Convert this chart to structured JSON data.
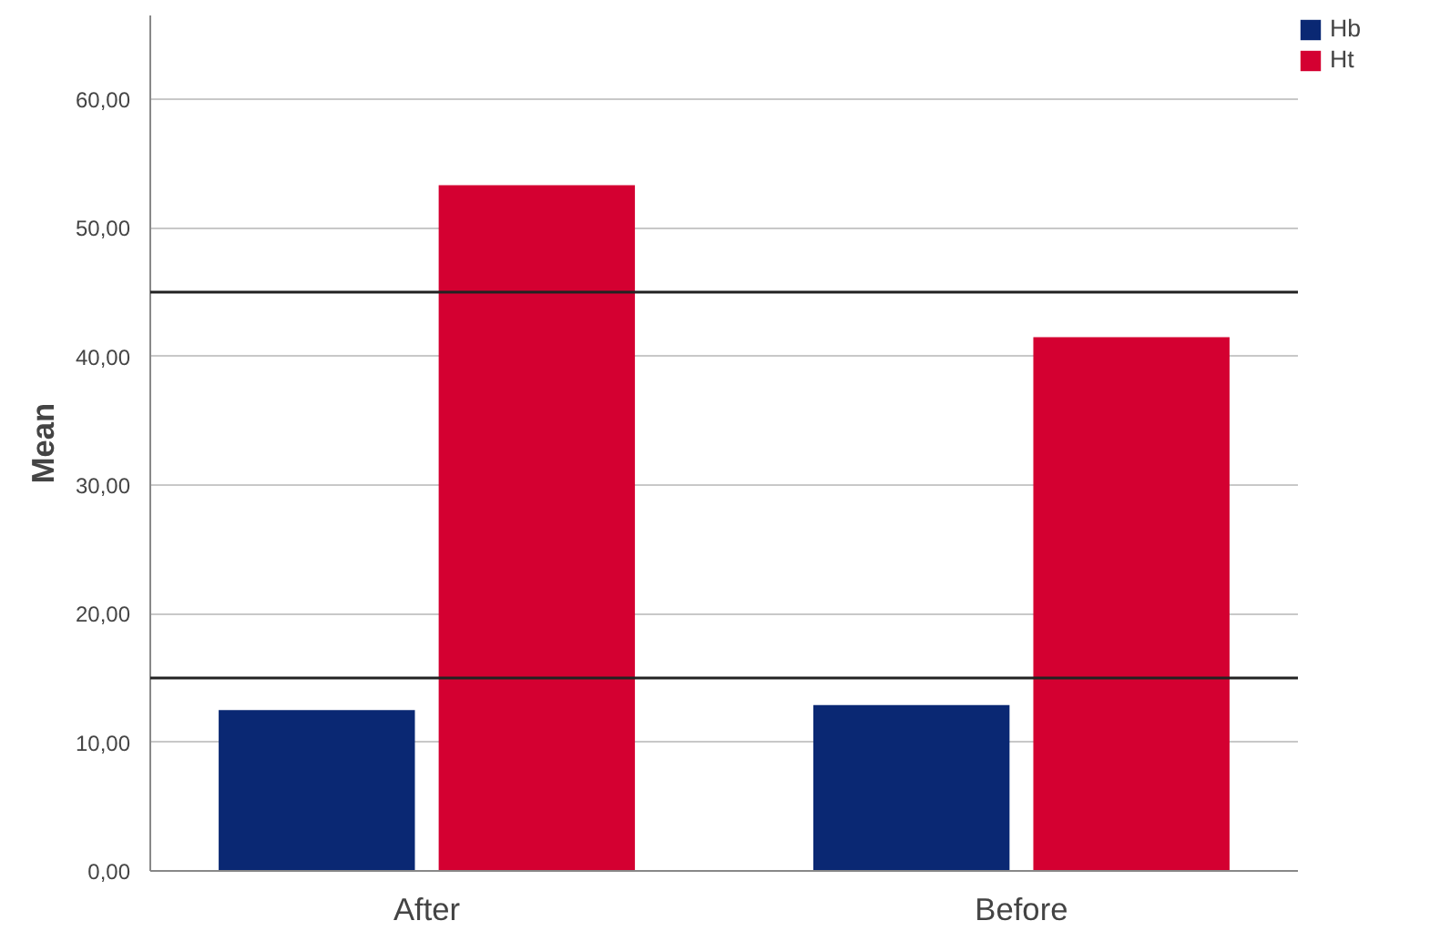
{
  "chart_data": {
    "type": "bar",
    "ylabel": "Mean",
    "categories": [
      "After",
      "Before"
    ],
    "series": [
      {
        "name": "Hb",
        "color": "#0a2873",
        "values": [
          12.5,
          12.9
        ]
      },
      {
        "name": "Ht",
        "color": "#d40031",
        "values": [
          53.3,
          41.5
        ]
      }
    ],
    "ylim": [
      0,
      66.5
    ],
    "yticks": [
      {
        "value": 0,
        "label": "0,00"
      },
      {
        "value": 10,
        "label": "10,00"
      },
      {
        "value": 20,
        "label": "20,00"
      },
      {
        "value": 30,
        "label": "30,00"
      },
      {
        "value": 40,
        "label": "40,00"
      },
      {
        "value": 50,
        "label": "50,00"
      },
      {
        "value": 60,
        "label": "60,00"
      }
    ],
    "ref_lines": [
      {
        "axis": "y",
        "value": 45,
        "label": null,
        "color": "#222222"
      },
      {
        "axis": "y",
        "value": 15,
        "label": null,
        "color": "#222222"
      }
    ],
    "grid": "y",
    "legend": "top right"
  }
}
